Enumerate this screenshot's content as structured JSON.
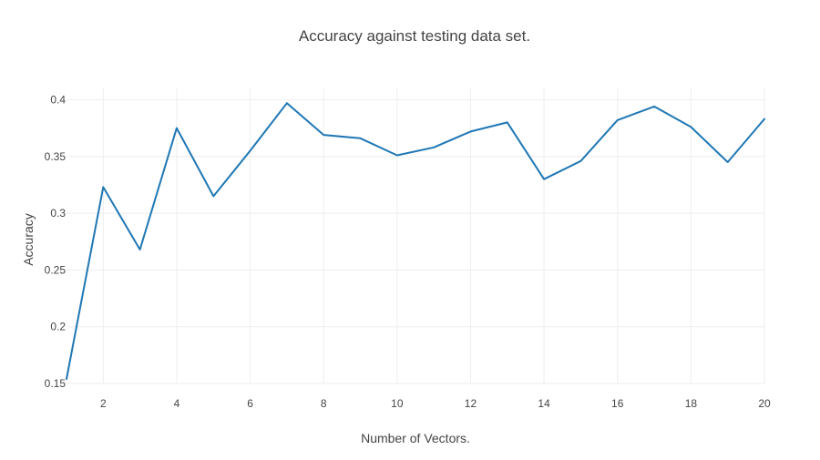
{
  "chart_data": {
    "type": "line",
    "title": "Accuracy against testing data set.",
    "xlabel": "Number of Vectors.",
    "ylabel": "Accuracy",
    "xlim": [
      1,
      20
    ],
    "ylim": [
      0.15,
      0.41
    ],
    "x_ticks": [
      2,
      4,
      6,
      8,
      10,
      12,
      14,
      16,
      18,
      20
    ],
    "y_ticks": [
      0.15,
      0.2,
      0.25,
      0.3,
      0.35,
      0.4
    ],
    "y_tick_labels": [
      "0.15",
      "0.2",
      "0.25",
      "0.3",
      "0.35",
      "0.4"
    ],
    "grid": true,
    "series": [
      {
        "color": "#1f77b4",
        "x": [
          1,
          2,
          3,
          4,
          5,
          6,
          7,
          8,
          9,
          10,
          11,
          12,
          13,
          14,
          15,
          16,
          17,
          18,
          19,
          20
        ],
        "y": [
          0.154,
          0.323,
          0.268,
          0.375,
          0.315,
          0.355,
          0.397,
          0.369,
          0.366,
          0.351,
          0.358,
          0.372,
          0.38,
          0.33,
          0.346,
          0.382,
          0.394,
          0.376,
          0.345,
          0.383
        ]
      }
    ]
  }
}
